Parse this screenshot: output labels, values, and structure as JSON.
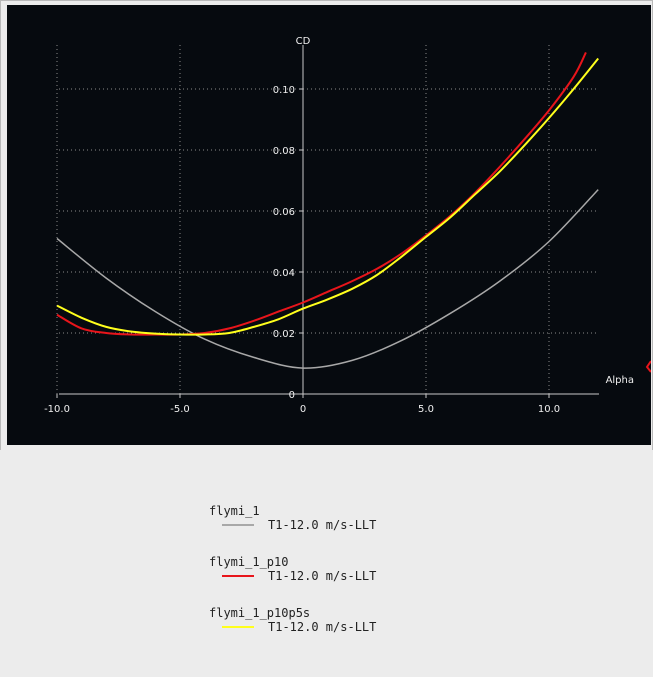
{
  "chart_data": {
    "type": "line",
    "xlabel": "Alpha",
    "ylabel": "CD",
    "xlim": [
      -10.0,
      12.0
    ],
    "ylim": [
      0,
      0.11
    ],
    "xticks": [
      "-10.0",
      "-5.0",
      "0",
      "5.0",
      "10.0"
    ],
    "yticks": [
      "0",
      "0.02",
      "0.04",
      "0.06",
      "0.08",
      "0.10"
    ],
    "grid": true,
    "series": [
      {
        "name": "flymi_1",
        "label": "T1-12.0 m/s-LLT",
        "color": "#a8a8a8",
        "x": [
          -10,
          -8,
          -6,
          -4,
          -2,
          0,
          2,
          4,
          6,
          8,
          10,
          12
        ],
        "y": [
          0.051,
          0.038,
          0.027,
          0.018,
          0.012,
          0.0085,
          0.011,
          0.0175,
          0.0265,
          0.037,
          0.05,
          0.067
        ]
      },
      {
        "name": "flymi_1_p10",
        "label": "T1-12.0 m/s-LLT",
        "color": "#e8151b",
        "x": [
          -10,
          -9,
          -8,
          -7,
          -6,
          -5,
          -4,
          -3,
          -2,
          -1,
          0,
          1,
          2,
          3,
          4,
          5,
          6,
          7,
          8,
          9,
          10,
          11,
          11.5
        ],
        "y": [
          0.026,
          0.0215,
          0.02,
          0.0195,
          0.0195,
          0.0195,
          0.02,
          0.0215,
          0.024,
          0.027,
          0.03,
          0.0335,
          0.037,
          0.041,
          0.046,
          0.052,
          0.0585,
          0.066,
          0.0745,
          0.0835,
          0.093,
          0.104,
          0.112
        ]
      },
      {
        "name": "flymi_1_p10p5s",
        "label": "T1-12.0 m/s-LLT",
        "color": "#ffff1c",
        "x": [
          -10,
          -9,
          -8,
          -7,
          -6,
          -5,
          -4,
          -3,
          -2,
          -1,
          0,
          1,
          2,
          3,
          4,
          5,
          6,
          7,
          8,
          9,
          10,
          11,
          12
        ],
        "y": [
          0.029,
          0.025,
          0.022,
          0.0205,
          0.0198,
          0.0195,
          0.0195,
          0.02,
          0.022,
          0.0245,
          0.028,
          0.031,
          0.0345,
          0.039,
          0.045,
          0.0515,
          0.058,
          0.0655,
          0.073,
          0.0815,
          0.0905,
          0.1,
          0.11
        ]
      }
    ]
  },
  "legend": [
    {
      "name": "flymi_1",
      "label": "T1-12.0 m/s-LLT",
      "color": "#a8a8a8"
    },
    {
      "name": "flymi_1_p10",
      "label": "T1-12.0 m/s-LLT",
      "color": "#e8151b"
    },
    {
      "name": "flymi_1_p10p5s",
      "label": "T1-12.0 m/s-LLT",
      "color": "#ffff1c"
    }
  ],
  "colors": {
    "plot_background": "#060a0f",
    "axis": "#c8c8c8",
    "grid": "#8a8a8a",
    "panel": "#ececec"
  }
}
